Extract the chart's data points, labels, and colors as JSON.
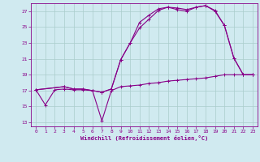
{
  "xlabel": "Windchill (Refroidissement éolien,°C)",
  "bg_color": "#d0eaf0",
  "grid_color": "#aacccc",
  "line_color": "#880088",
  "xlim": [
    -0.5,
    23.5
  ],
  "ylim": [
    12.5,
    28.0
  ],
  "yticks": [
    13,
    15,
    17,
    19,
    21,
    23,
    25,
    27
  ],
  "xticks": [
    0,
    1,
    2,
    3,
    4,
    5,
    6,
    7,
    8,
    9,
    10,
    11,
    12,
    13,
    14,
    15,
    16,
    17,
    18,
    19,
    20,
    21,
    22,
    23
  ],
  "line1_x": [
    0,
    1,
    2,
    3,
    4,
    5,
    6,
    7,
    8,
    9,
    10,
    11,
    12,
    13,
    14,
    15,
    16,
    17,
    18,
    19,
    20,
    21,
    22,
    23
  ],
  "line1_y": [
    17.1,
    15.2,
    17.1,
    17.2,
    17.1,
    17.1,
    17.0,
    13.2,
    17.0,
    17.5,
    17.6,
    17.7,
    17.9,
    18.0,
    18.2,
    18.3,
    18.4,
    18.5,
    18.6,
    18.8,
    19.0,
    19.0,
    19.0,
    19.0
  ],
  "line2_x": [
    0,
    3,
    4,
    5,
    6,
    7,
    8,
    9,
    10,
    11,
    12,
    13,
    14,
    15,
    16,
    17,
    18,
    19,
    20,
    21,
    22,
    23
  ],
  "line2_y": [
    17.1,
    17.5,
    17.2,
    17.2,
    17.0,
    16.8,
    17.2,
    20.9,
    23.0,
    25.6,
    26.5,
    27.3,
    27.5,
    27.4,
    27.2,
    27.5,
    27.7,
    27.1,
    25.2,
    21.1,
    19.0,
    19.0
  ],
  "line3_x": [
    0,
    3,
    4,
    5,
    6,
    7,
    8,
    9,
    10,
    11,
    12,
    13,
    14,
    15,
    16,
    17,
    18,
    19,
    20,
    21,
    22,
    23
  ],
  "line3_y": [
    17.1,
    17.5,
    17.2,
    17.2,
    17.0,
    16.8,
    17.2,
    20.9,
    23.0,
    24.9,
    26.0,
    27.1,
    27.5,
    27.2,
    27.0,
    27.5,
    27.7,
    27.0,
    25.2,
    21.1,
    19.0,
    19.0
  ]
}
